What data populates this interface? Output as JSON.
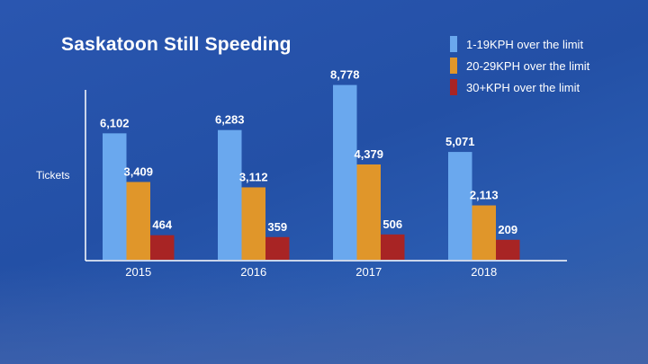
{
  "chart_data": {
    "type": "bar",
    "title": "Saskatoon Still Speeding",
    "xlabel": "",
    "ylabel": "Tickets",
    "categories": [
      "2015",
      "2016",
      "2017",
      "2018"
    ],
    "series": [
      {
        "name": "1-19KPH over the limit",
        "color": "#6aa8ee",
        "values": [
          6102,
          6283,
          8778,
          5071
        ],
        "labels": [
          "6,102",
          "6,283",
          "8,778",
          "5,071"
        ]
      },
      {
        "name": "20-29KPH over the limit",
        "color": "#e0962a",
        "values": [
          3409,
          3112,
          4379,
          2113
        ],
        "labels": [
          "3,409",
          "3,112",
          "4,379",
          "2,113"
        ]
      },
      {
        "name": "30+KPH over the limit",
        "color": "#a82424",
        "values": [
          464,
          359,
          506,
          209
        ],
        "labels": [
          "464",
          "359",
          "506",
          "209"
        ]
      }
    ],
    "legend_position": "top-right",
    "grid": false
  }
}
